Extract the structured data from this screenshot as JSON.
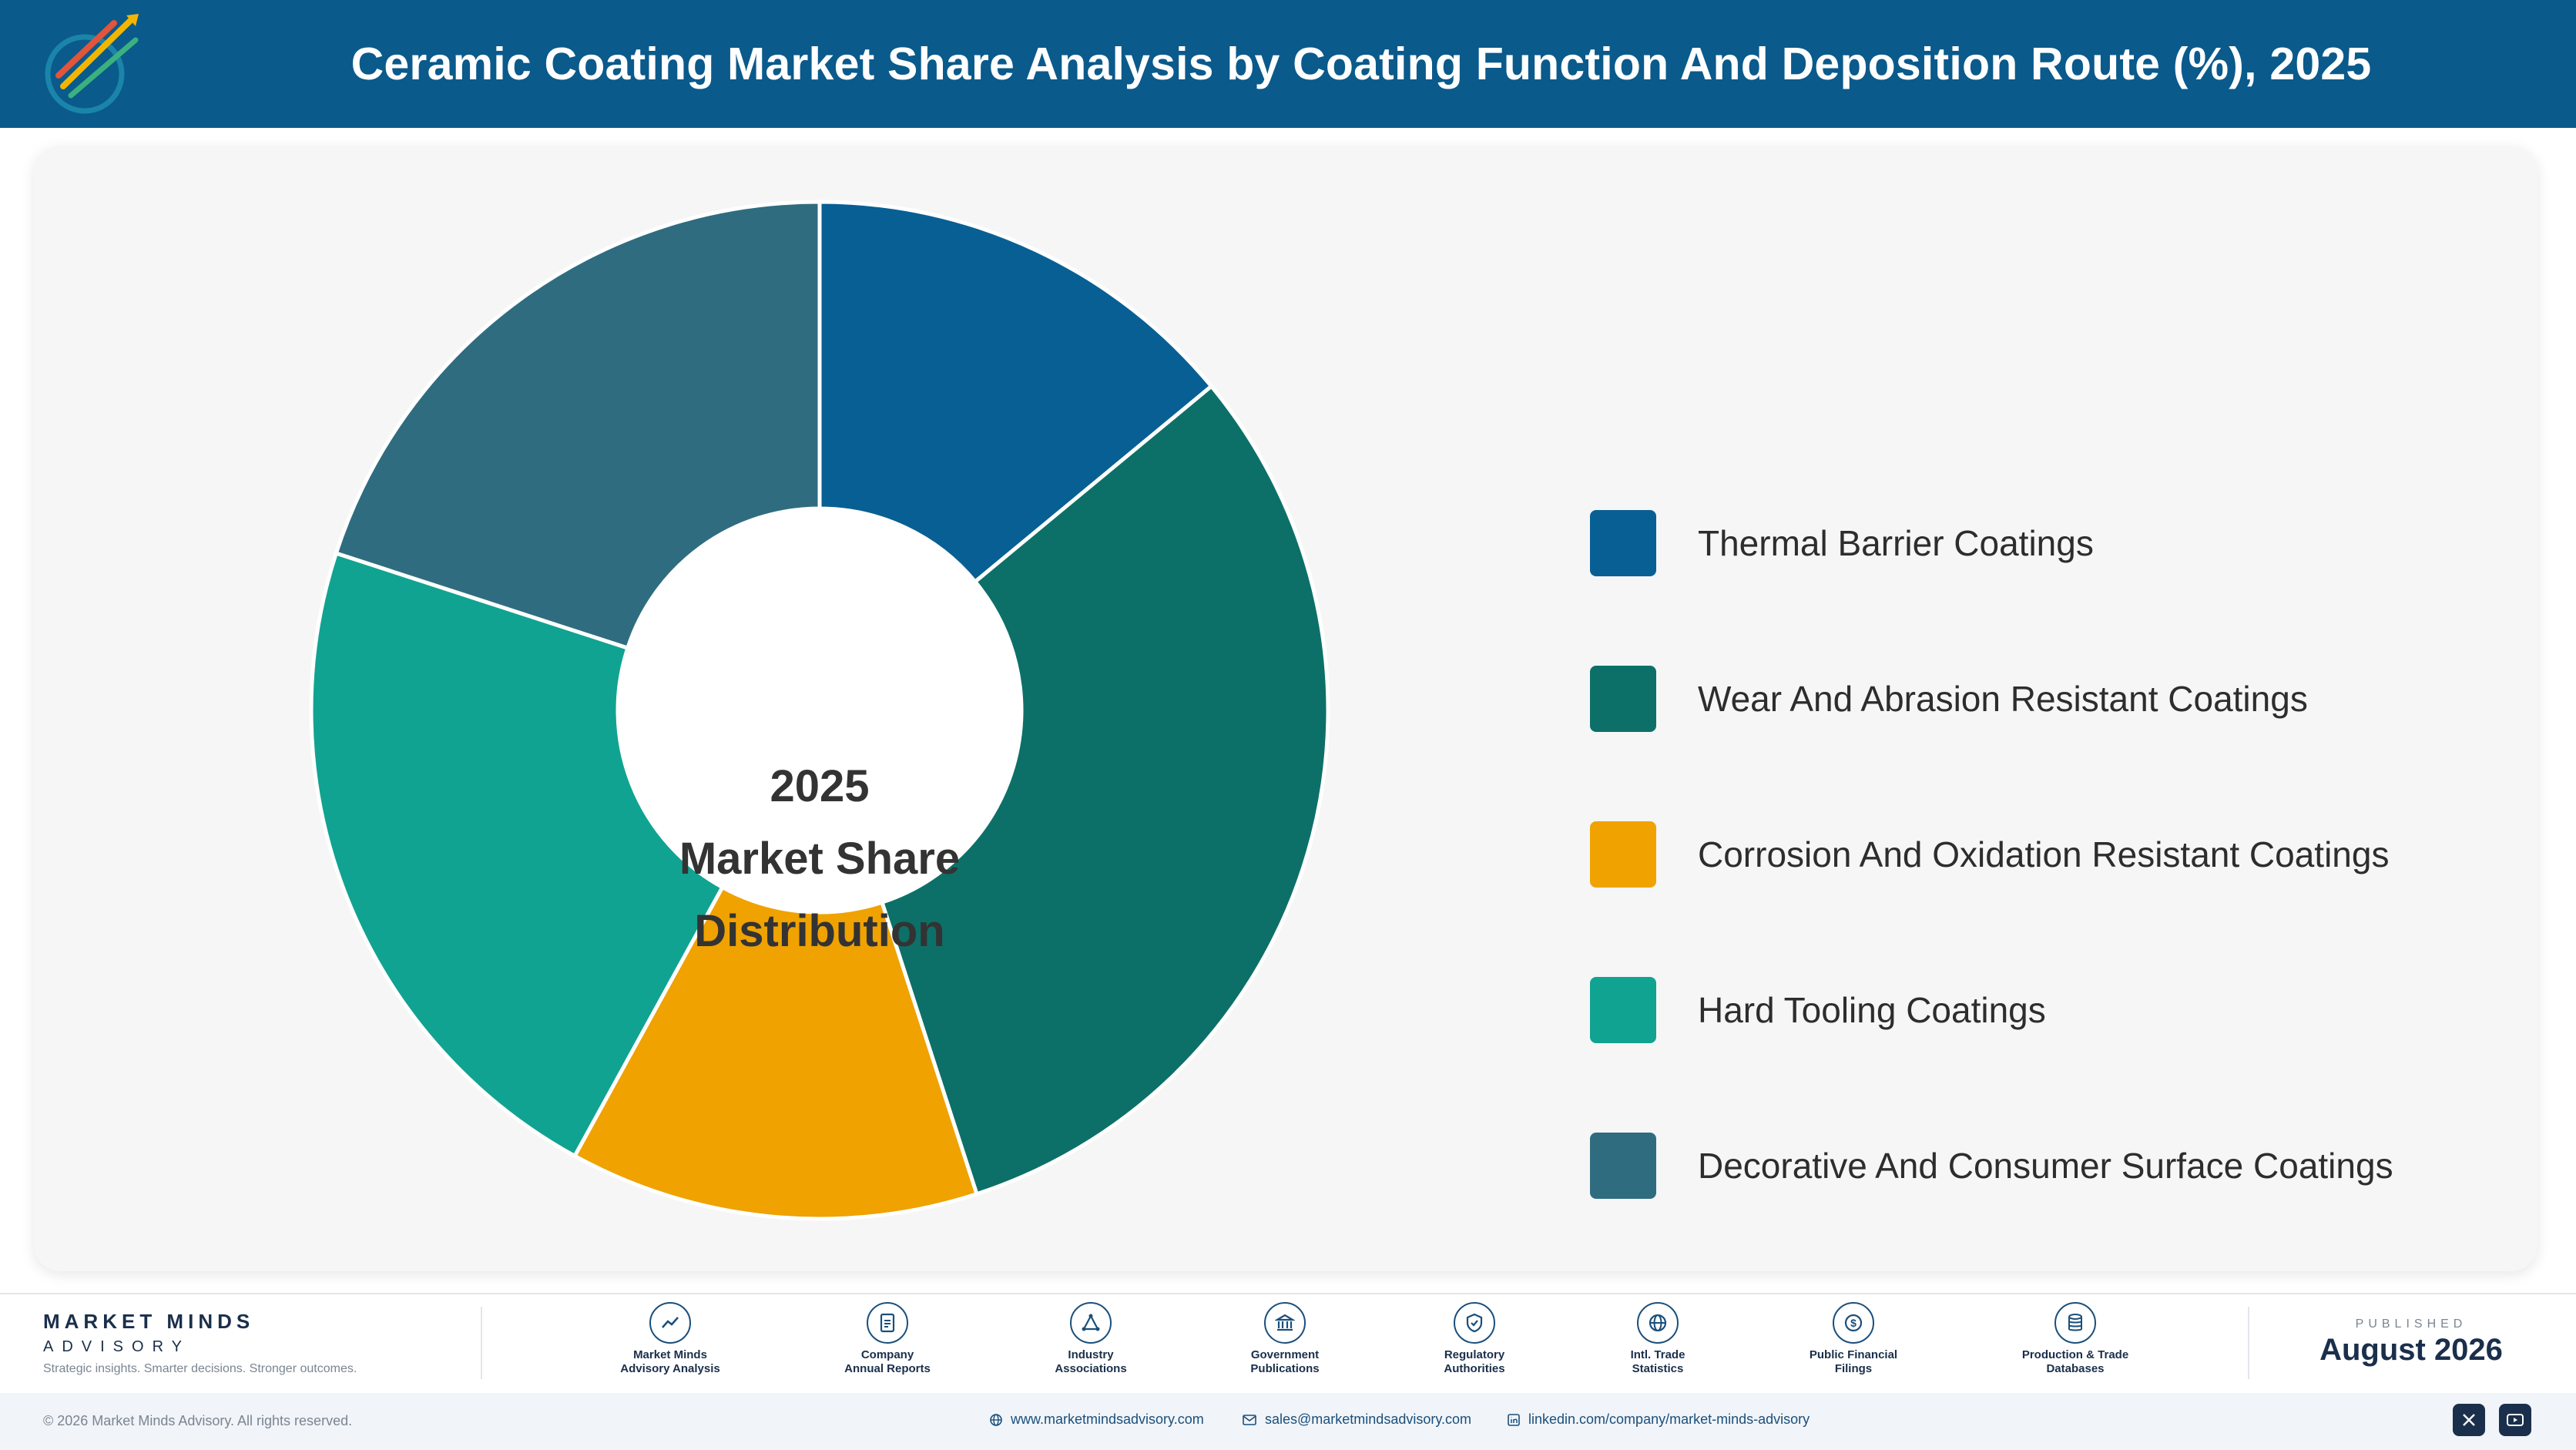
{
  "header": {
    "title": "Ceramic Coating Market Share Analysis by Coating Function And Deposition Route (%), 2025",
    "background": "#0a5a8c"
  },
  "chart_data": {
    "type": "pie",
    "title": "Ceramic Coating Market Share Analysis by Coating Function And Deposition Route (%), 2025",
    "center_label": [
      "2025",
      "Market Share",
      "Distribution"
    ],
    "categories": [
      "Thermal Barrier Coatings",
      "Wear And Abrasion Resistant Coatings",
      "Corrosion And Oxidation Resistant Coatings",
      "Hard Tooling Coatings",
      "Decorative And Consumer Surface Coatings"
    ],
    "values": [
      14,
      31,
      13,
      22,
      20
    ],
    "colors": [
      "#085f94",
      "#0c7068",
      "#efa200",
      "#11a391",
      "#2f6c80"
    ],
    "legend_position": "right"
  },
  "footer": {
    "brand_name": "MARKET MINDS",
    "brand_sub": "ADVISORY",
    "tagline": "Strategic insights. Smarter decisions. Stronger outcomes.",
    "sources": [
      {
        "label": "Market Minds\nAdvisory Analysis",
        "icon": "trend-icon"
      },
      {
        "label": "Company\nAnnual Reports",
        "icon": "document-icon"
      },
      {
        "label": "Industry\nAssociations",
        "icon": "network-icon"
      },
      {
        "label": "Government\nPublications",
        "icon": "government-icon"
      },
      {
        "label": "Regulatory\nAuthorities",
        "icon": "shield-icon"
      },
      {
        "label": "Intl. Trade\nStatistics",
        "icon": "globe-icon"
      },
      {
        "label": "Public Financial\nFilings",
        "icon": "dollar-icon"
      },
      {
        "label": "Production & Trade\nDatabases",
        "icon": "database-icon"
      }
    ],
    "published_label": "PUBLISHED",
    "published_date": "August 2026",
    "copyright": "© 2026 Market Minds Advisory. All rights reserved.",
    "website": "www.marketmindsadvisory.com",
    "email": "sales@marketmindsadvisory.com",
    "linkedin": "linkedin.com/company/market-minds-advisory"
  }
}
